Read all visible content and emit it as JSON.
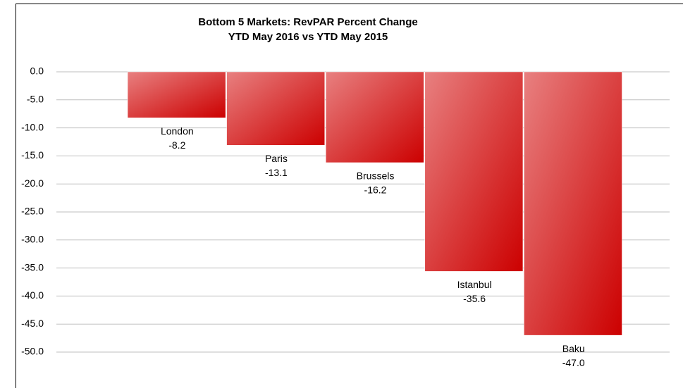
{
  "chart_data": {
    "type": "bar",
    "title": "Bottom 5 Markets: RevPAR Percent Change",
    "subtitle": "YTD May 2016 vs YTD May 2015",
    "categories": [
      "London",
      "Paris",
      "Brussels",
      "Istanbul",
      "Baku"
    ],
    "values": [
      -8.2,
      -13.1,
      -16.2,
      -35.6,
      -47.0
    ],
    "value_labels": [
      "-8.2",
      "-13.1",
      "-16.2",
      "-35.6",
      "-47.0"
    ],
    "color": "#cc0000",
    "ylim": [
      -50,
      0
    ],
    "yticks": [
      {
        "value": 0,
        "label": "0.0"
      },
      {
        "value": -5,
        "label": "-5.0"
      },
      {
        "value": -10,
        "label": "-10.0"
      },
      {
        "value": -15,
        "label": "-15.0"
      },
      {
        "value": -20,
        "label": "-20.0"
      },
      {
        "value": -25,
        "label": "-25.0"
      },
      {
        "value": -30,
        "label": "-30.0"
      },
      {
        "value": -35,
        "label": "-35.0"
      },
      {
        "value": -40,
        "label": "-40.0"
      },
      {
        "value": -45,
        "label": "-45.0"
      },
      {
        "value": -50,
        "label": "-50.0"
      }
    ],
    "grid": true
  }
}
